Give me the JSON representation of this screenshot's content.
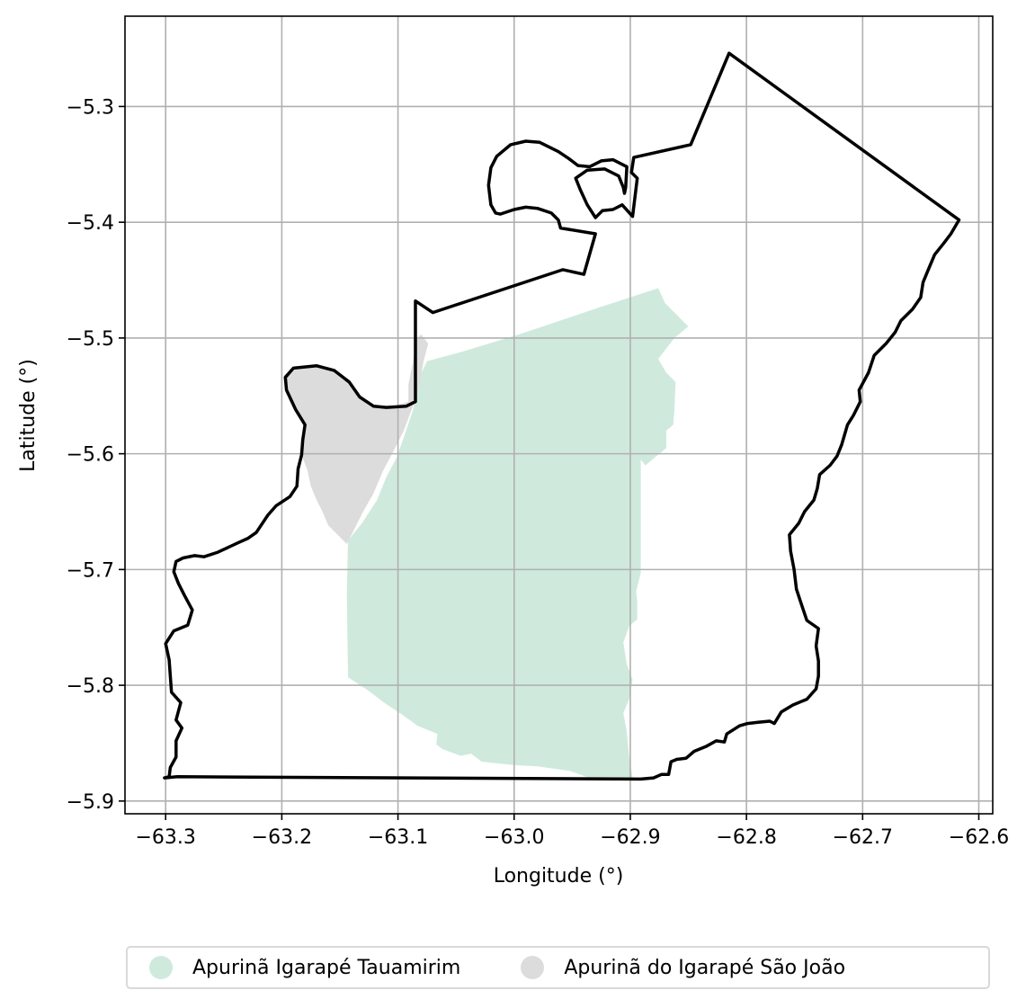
{
  "map": {
    "xlabel": "Longitude (°)",
    "ylabel": "Latitude (°)",
    "grid": true,
    "xlim": [
      -63.335,
      -62.588
    ],
    "ylim": [
      -5.911,
      -5.222
    ],
    "x_ticks": [
      {
        "value": -63.3,
        "label": "−63.3"
      },
      {
        "value": -63.2,
        "label": "−63.2"
      },
      {
        "value": -63.1,
        "label": "−63.1"
      },
      {
        "value": -63.0,
        "label": "−63.0"
      },
      {
        "value": -62.9,
        "label": "−62.9"
      },
      {
        "value": -62.8,
        "label": "−62.8"
      },
      {
        "value": -62.7,
        "label": "−62.7"
      },
      {
        "value": -62.6,
        "label": "−62.6"
      }
    ],
    "y_ticks": [
      {
        "value": -5.3,
        "label": "−5.3"
      },
      {
        "value": -5.4,
        "label": "−5.4"
      },
      {
        "value": -5.5,
        "label": "−5.5"
      },
      {
        "value": -5.6,
        "label": "−5.6"
      },
      {
        "value": -5.7,
        "label": "−5.7"
      },
      {
        "value": -5.8,
        "label": "−5.8"
      },
      {
        "value": -5.9,
        "label": "−5.9"
      }
    ],
    "regions": [
      {
        "name": "Apurinã Igarapé Tauamirim",
        "color": "#cfeadd",
        "polygon": [
          [
            -62.876,
            -5.457
          ],
          [
            -62.925,
            -5.473
          ],
          [
            -62.993,
            -5.496
          ],
          [
            -63.045,
            -5.512
          ],
          [
            -63.075,
            -5.52
          ],
          [
            -63.083,
            -5.537
          ],
          [
            -63.087,
            -5.562
          ],
          [
            -63.093,
            -5.58
          ],
          [
            -63.101,
            -5.603
          ],
          [
            -63.11,
            -5.62
          ],
          [
            -63.118,
            -5.64
          ],
          [
            -63.131,
            -5.66
          ],
          [
            -63.143,
            -5.675
          ],
          [
            -63.144,
            -5.72
          ],
          [
            -63.143,
            -5.793
          ],
          [
            -63.125,
            -5.805
          ],
          [
            -63.112,
            -5.815
          ],
          [
            -63.097,
            -5.825
          ],
          [
            -63.083,
            -5.835
          ],
          [
            -63.066,
            -5.842
          ],
          [
            -63.067,
            -5.851
          ],
          [
            -63.062,
            -5.855
          ],
          [
            -63.046,
            -5.861
          ],
          [
            -63.037,
            -5.859
          ],
          [
            -63.028,
            -5.866
          ],
          [
            -63.0,
            -5.869
          ],
          [
            -62.98,
            -5.87
          ],
          [
            -62.952,
            -5.874
          ],
          [
            -62.935,
            -5.88
          ],
          [
            -62.898,
            -5.88
          ],
          [
            -62.901,
            -5.862
          ],
          [
            -62.903,
            -5.84
          ],
          [
            -62.906,
            -5.824
          ],
          [
            -62.901,
            -5.812
          ],
          [
            -62.898,
            -5.795
          ],
          [
            -62.903,
            -5.782
          ],
          [
            -62.906,
            -5.763
          ],
          [
            -62.901,
            -5.749
          ],
          [
            -62.894,
            -5.743
          ],
          [
            -62.894,
            -5.728
          ],
          [
            -62.895,
            -5.719
          ],
          [
            -62.891,
            -5.703
          ],
          [
            -62.891,
            -5.68
          ],
          [
            -62.891,
            -5.659
          ],
          [
            -62.891,
            -5.634
          ],
          [
            -62.891,
            -5.62
          ],
          [
            -62.891,
            -5.605
          ],
          [
            -62.887,
            -5.61
          ],
          [
            -62.875,
            -5.6
          ],
          [
            -62.869,
            -5.595
          ],
          [
            -62.869,
            -5.58
          ],
          [
            -62.863,
            -5.575
          ],
          [
            -62.862,
            -5.563
          ],
          [
            -62.861,
            -5.538
          ],
          [
            -62.869,
            -5.53
          ],
          [
            -62.876,
            -5.518
          ],
          [
            -62.862,
            -5.5
          ],
          [
            -62.85,
            -5.49
          ],
          [
            -62.86,
            -5.48
          ],
          [
            -62.87,
            -5.47
          ]
        ]
      },
      {
        "name": "Apurinã do Igarapé São João",
        "color": "#dcdcdc",
        "polygon": [
          [
            -63.074,
            -5.505
          ],
          [
            -63.078,
            -5.52
          ],
          [
            -63.081,
            -5.538
          ],
          [
            -63.085,
            -5.553
          ],
          [
            -63.095,
            -5.58
          ],
          [
            -63.105,
            -5.6
          ],
          [
            -63.113,
            -5.615
          ],
          [
            -63.121,
            -5.634
          ],
          [
            -63.13,
            -5.65
          ],
          [
            -63.14,
            -5.67
          ],
          [
            -63.144,
            -5.678
          ],
          [
            -63.15,
            -5.672
          ],
          [
            -63.16,
            -5.662
          ],
          [
            -63.165,
            -5.65
          ],
          [
            -63.17,
            -5.64
          ],
          [
            -63.175,
            -5.628
          ],
          [
            -63.178,
            -5.614
          ],
          [
            -63.183,
            -5.601
          ],
          [
            -63.183,
            -5.588
          ],
          [
            -63.18,
            -5.575
          ],
          [
            -63.188,
            -5.56
          ],
          [
            -63.197,
            -5.543
          ],
          [
            -63.198,
            -5.532
          ],
          [
            -63.19,
            -5.526
          ],
          [
            -63.17,
            -5.524
          ],
          [
            -63.155,
            -5.528
          ],
          [
            -63.142,
            -5.538
          ],
          [
            -63.133,
            -5.551
          ],
          [
            -63.121,
            -5.559
          ],
          [
            -63.104,
            -5.559
          ],
          [
            -63.091,
            -5.555
          ],
          [
            -63.091,
            -5.54
          ],
          [
            -63.087,
            -5.52
          ],
          [
            -63.084,
            -5.5
          ],
          [
            -63.08,
            -5.497
          ]
        ]
      }
    ],
    "boundaries": [
      {
        "name": "municipality-outline",
        "color": "#000000",
        "coordinates": [
          [
            -63.29,
            -5.879
          ],
          [
            -62.891,
            -5.881
          ],
          [
            -62.88,
            -5.88
          ],
          [
            -62.873,
            -5.877
          ],
          [
            -62.867,
            -5.877
          ],
          [
            -62.865,
            -5.866
          ],
          [
            -62.86,
            -5.864
          ],
          [
            -62.852,
            -5.863
          ],
          [
            -62.845,
            -5.857
          ],
          [
            -62.835,
            -5.853
          ],
          [
            -62.826,
            -5.848
          ],
          [
            -62.819,
            -5.849
          ],
          [
            -62.817,
            -5.842
          ],
          [
            -62.806,
            -5.835
          ],
          [
            -62.799,
            -5.833
          ],
          [
            -62.79,
            -5.832
          ],
          [
            -62.78,
            -5.831
          ],
          [
            -62.776,
            -5.833
          ],
          [
            -62.77,
            -5.823
          ],
          [
            -62.76,
            -5.817
          ],
          [
            -62.748,
            -5.812
          ],
          [
            -62.74,
            -5.803
          ],
          [
            -62.738,
            -5.792
          ],
          [
            -62.738,
            -5.779
          ],
          [
            -62.74,
            -5.766
          ],
          [
            -62.738,
            -5.751
          ],
          [
            -62.748,
            -5.744
          ],
          [
            -62.752,
            -5.732
          ],
          [
            -62.757,
            -5.717
          ],
          [
            -62.759,
            -5.7
          ],
          [
            -62.762,
            -5.684
          ],
          [
            -62.763,
            -5.67
          ],
          [
            -62.755,
            -5.66
          ],
          [
            -62.75,
            -5.65
          ],
          [
            -62.742,
            -5.64
          ],
          [
            -62.739,
            -5.63
          ],
          [
            -62.737,
            -5.618
          ],
          [
            -62.728,
            -5.61
          ],
          [
            -62.722,
            -5.602
          ],
          [
            -62.718,
            -5.592
          ],
          [
            -62.713,
            -5.575
          ],
          [
            -62.708,
            -5.567
          ],
          [
            -62.702,
            -5.555
          ],
          [
            -62.703,
            -5.545
          ],
          [
            -62.695,
            -5.53
          ],
          [
            -62.69,
            -5.515
          ],
          [
            -62.68,
            -5.505
          ],
          [
            -62.672,
            -5.495
          ],
          [
            -62.667,
            -5.485
          ],
          [
            -62.657,
            -5.475
          ],
          [
            -62.65,
            -5.465
          ],
          [
            -62.648,
            -5.452
          ],
          [
            -62.643,
            -5.44
          ],
          [
            -62.638,
            -5.428
          ],
          [
            -62.63,
            -5.418
          ],
          [
            -62.624,
            -5.41
          ],
          [
            -62.617,
            -5.398
          ],
          [
            -62.815,
            -5.254
          ],
          [
            -62.848,
            -5.333
          ],
          [
            -62.897,
            -5.344
          ],
          [
            -62.899,
            -5.357
          ],
          [
            -62.894,
            -5.362
          ],
          [
            -62.898,
            -5.395
          ],
          [
            -62.907,
            -5.385
          ],
          [
            -62.915,
            -5.389
          ],
          [
            -62.924,
            -5.39
          ],
          [
            -62.93,
            -5.396
          ],
          [
            -62.937,
            -5.385
          ],
          [
            -62.943,
            -5.372
          ],
          [
            -62.947,
            -5.362
          ],
          [
            -62.937,
            -5.355
          ],
          [
            -62.922,
            -5.354
          ],
          [
            -62.91,
            -5.36
          ],
          [
            -62.906,
            -5.37
          ],
          [
            -62.905,
            -5.375
          ],
          [
            -62.904,
            -5.37
          ],
          [
            -62.903,
            -5.352
          ],
          [
            -62.915,
            -5.346
          ],
          [
            -62.925,
            -5.347
          ],
          [
            -62.935,
            -5.352
          ],
          [
            -62.945,
            -5.351
          ],
          [
            -62.953,
            -5.345
          ],
          [
            -62.962,
            -5.339
          ],
          [
            -62.978,
            -5.331
          ],
          [
            -62.99,
            -5.33
          ],
          [
            -63.003,
            -5.333
          ],
          [
            -63.015,
            -5.343
          ],
          [
            -63.02,
            -5.353
          ],
          [
            -63.022,
            -5.368
          ],
          [
            -63.02,
            -5.385
          ],
          [
            -63.016,
            -5.392
          ],
          [
            -63.012,
            -5.393
          ],
          [
            -63.0,
            -5.389
          ],
          [
            -62.99,
            -5.387
          ],
          [
            -62.98,
            -5.388
          ],
          [
            -62.968,
            -5.392
          ],
          [
            -62.962,
            -5.398
          ],
          [
            -62.96,
            -5.405
          ],
          [
            -62.93,
            -5.41
          ],
          [
            -62.94,
            -5.445
          ],
          [
            -62.958,
            -5.441
          ],
          [
            -63.07,
            -5.478
          ],
          [
            -63.085,
            -5.468
          ],
          [
            -63.085,
            -5.555
          ],
          [
            -63.093,
            -5.559
          ],
          [
            -63.11,
            -5.56
          ],
          [
            -63.121,
            -5.559
          ],
          [
            -63.133,
            -5.551
          ],
          [
            -63.142,
            -5.538
          ],
          [
            -63.155,
            -5.528
          ],
          [
            -63.17,
            -5.524
          ],
          [
            -63.19,
            -5.526
          ],
          [
            -63.197,
            -5.534
          ],
          [
            -63.196,
            -5.545
          ],
          [
            -63.188,
            -5.562
          ],
          [
            -63.18,
            -5.575
          ],
          [
            -63.182,
            -5.588
          ],
          [
            -63.183,
            -5.601
          ],
          [
            -63.186,
            -5.613
          ],
          [
            -63.187,
            -5.628
          ],
          [
            -63.193,
            -5.637
          ],
          [
            -63.205,
            -5.645
          ],
          [
            -63.212,
            -5.653
          ],
          [
            -63.222,
            -5.668
          ],
          [
            -63.229,
            -5.673
          ],
          [
            -63.238,
            -5.677
          ],
          [
            -63.255,
            -5.685
          ],
          [
            -63.267,
            -5.689
          ],
          [
            -63.275,
            -5.688
          ],
          [
            -63.285,
            -5.69
          ],
          [
            -63.291,
            -5.693
          ],
          [
            -63.293,
            -5.702
          ],
          [
            -63.289,
            -5.712
          ],
          [
            -63.284,
            -5.722
          ],
          [
            -63.277,
            -5.735
          ],
          [
            -63.281,
            -5.748
          ],
          [
            -63.293,
            -5.753
          ],
          [
            -63.3,
            -5.764
          ],
          [
            -63.297,
            -5.778
          ],
          [
            -63.296,
            -5.792
          ],
          [
            -63.295,
            -5.806
          ],
          [
            -63.287,
            -5.815
          ],
          [
            -63.291,
            -5.83
          ],
          [
            -63.286,
            -5.837
          ],
          [
            -63.291,
            -5.848
          ],
          [
            -63.291,
            -5.862
          ],
          [
            -63.296,
            -5.871
          ],
          [
            -63.297,
            -5.879
          ],
          [
            -63.301,
            -5.88
          ]
        ]
      }
    ]
  },
  "legend": {
    "items": [
      {
        "label": "Apurinã Igarapé Tauamirim",
        "color": "#cfeadd"
      },
      {
        "label": "Apurinã do Igarapé São João",
        "color": "#dcdcdc"
      }
    ]
  }
}
